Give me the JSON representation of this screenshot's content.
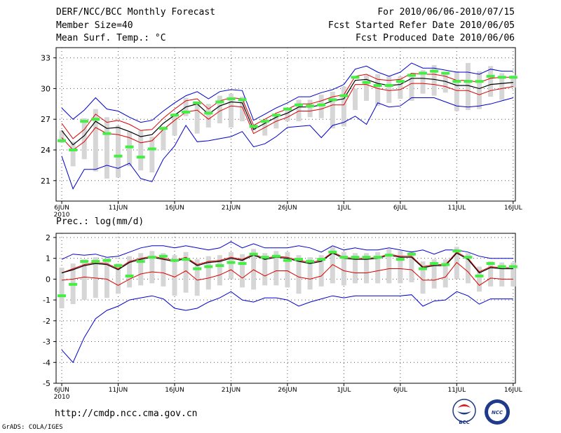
{
  "header": {
    "title": "DERF/NCC/BCC Monthly Forecast",
    "member_size": "Member Size=40",
    "variable": "Mean Surf. Temp.: °C",
    "forecast_period": "For 2010/06/06-2010/07/15",
    "start_refer": "Fcst Started Refer Date 2010/06/05",
    "produced": "Fcst Produced Date 2010/06/06"
  },
  "footer": {
    "url": "http://cmdp.ncc.cma.gov.cn",
    "grads": "GrADS: COLA/IGES",
    "logo_bcc": "BCC",
    "logo_ncc": "NCC"
  },
  "colors": {
    "envelope": "#0000cc",
    "spread": "#dd0000",
    "mean": "#000000",
    "median": "#44ee44",
    "box": "#d6d6d6",
    "grid": "#555555"
  },
  "chart_data": [
    {
      "type": "line",
      "title": "Mean Surf. Temp.: °C",
      "xlabel": "",
      "ylabel": "°C",
      "ylim": [
        19,
        34
      ],
      "yticks": [
        21,
        24,
        27,
        30,
        33
      ],
      "xticks": [
        {
          "day": 0,
          "label": "6JUN",
          "year": "2010"
        },
        {
          "day": 5,
          "label": "11JUN"
        },
        {
          "day": 10,
          "label": "16JUN"
        },
        {
          "day": 15,
          "label": "21JUN"
        },
        {
          "day": 20,
          "label": "26JUN"
        },
        {
          "day": 25,
          "label": "1JUL"
        },
        {
          "day": 30,
          "label": "6JUL"
        },
        {
          "day": 35,
          "label": "11JUL"
        },
        {
          "day": 40,
          "label": "16JUL"
        }
      ],
      "xlim": [
        -0.5,
        40.2
      ],
      "series": [
        {
          "name": "ensemble max",
          "values": [
            28.1,
            27.0,
            27.9,
            29.1,
            28.0,
            27.8,
            27.2,
            26.7,
            26.9,
            27.8,
            28.6,
            29.3,
            29.7,
            29.0,
            29.7,
            29.9,
            29.8,
            26.9,
            27.5,
            28.1,
            28.6,
            29.2,
            29.2,
            29.6,
            29.9,
            30.4,
            31.9,
            32.2,
            31.6,
            31.2,
            31.6,
            32.5,
            32.0,
            32.0,
            31.8,
            31.6,
            31.6,
            31.4,
            31.9,
            31.7,
            31.7
          ]
        },
        {
          "name": "spread upper",
          "values": [
            26.6,
            25.1,
            26.0,
            27.5,
            26.7,
            26.9,
            26.5,
            25.9,
            26.0,
            27.1,
            28.0,
            28.8,
            29.0,
            28.0,
            28.8,
            29.1,
            29.0,
            26.4,
            27.0,
            27.6,
            28.0,
            28.5,
            28.5,
            28.8,
            29.2,
            29.4,
            31.2,
            31.4,
            30.9,
            30.8,
            30.9,
            31.5,
            31.4,
            31.4,
            31.2,
            30.8,
            30.8,
            30.6,
            31.0,
            31.1,
            31.1
          ]
        },
        {
          "name": "ensemble mean",
          "values": [
            25.9,
            24.5,
            25.4,
            26.8,
            26.1,
            26.2,
            25.8,
            25.3,
            25.5,
            26.6,
            27.4,
            28.2,
            28.5,
            27.5,
            28.3,
            28.7,
            28.6,
            26.0,
            26.6,
            27.2,
            27.6,
            28.2,
            28.2,
            28.4,
            28.8,
            29.0,
            30.8,
            30.9,
            30.5,
            30.3,
            30.4,
            31.0,
            31.0,
            30.9,
            30.7,
            30.3,
            30.3,
            30.0,
            30.4,
            30.5,
            30.6
          ]
        },
        {
          "name": "spread lower",
          "values": [
            25.2,
            24.0,
            24.8,
            26.2,
            25.6,
            25.5,
            25.2,
            24.7,
            24.9,
            26.0,
            26.9,
            27.7,
            27.9,
            27.0,
            27.8,
            28.3,
            28.2,
            25.6,
            26.2,
            26.8,
            27.2,
            27.8,
            27.8,
            28.0,
            28.4,
            28.4,
            30.4,
            30.4,
            30.0,
            29.8,
            29.9,
            30.5,
            30.5,
            30.4,
            30.2,
            29.8,
            29.8,
            29.4,
            29.8,
            30.0,
            30.2
          ]
        },
        {
          "name": "ensemble min",
          "values": [
            23.4,
            20.2,
            22.1,
            22.1,
            22.5,
            22.2,
            22.7,
            21.2,
            20.9,
            23.1,
            24.4,
            26.4,
            24.8,
            24.9,
            25.1,
            25.3,
            25.8,
            24.3,
            24.6,
            25.3,
            26.2,
            26.3,
            26.4,
            25.2,
            26.4,
            26.7,
            27.3,
            26.5,
            28.6,
            28.2,
            28.3,
            29.1,
            29.1,
            29.1,
            28.7,
            28.3,
            28.2,
            28.3,
            28.5,
            28.8,
            29.1
          ]
        }
      ],
      "median": [
        24.9,
        24.0,
        26.8,
        27.0,
        25.6,
        23.4,
        24.3,
        23.3,
        24.1,
        26.1,
        27.4,
        27.7,
        28.6,
        27.6,
        28.7,
        29.0,
        28.9,
        26.3,
        26.8,
        27.4,
        28.0,
        28.4,
        28.3,
        28.4,
        28.9,
        29.3,
        31.1,
        30.6,
        30.3,
        30.3,
        30.7,
        31.3,
        31.5,
        31.7,
        31.5,
        30.7,
        30.7,
        30.7,
        31.2,
        31.1,
        31.1
      ],
      "box": [
        [
          24.7,
          25.9
        ],
        [
          22.4,
          24.8
        ],
        [
          23.1,
          27.1
        ],
        [
          21.9,
          28.0
        ],
        [
          21.2,
          27.2
        ],
        [
          21.3,
          26.4
        ],
        [
          22.4,
          25.8
        ],
        [
          22.0,
          25.9
        ],
        [
          21.8,
          25.3
        ],
        [
          24.0,
          26.3
        ],
        [
          25.4,
          27.6
        ],
        [
          27.3,
          29.1
        ],
        [
          25.6,
          28.6
        ],
        [
          26.2,
          28.5
        ],
        [
          26.6,
          29.3
        ],
        [
          26.2,
          29.5
        ],
        [
          26.8,
          29.2
        ],
        [
          25.9,
          26.4
        ],
        [
          25.4,
          26.8
        ],
        [
          26.1,
          27.3
        ],
        [
          26.8,
          28.1
        ],
        [
          26.8,
          28.9
        ],
        [
          27.2,
          28.9
        ],
        [
          27.1,
          29.4
        ],
        [
          26.1,
          29.7
        ],
        [
          26.3,
          30.2
        ],
        [
          27.9,
          30.0
        ],
        [
          28.8,
          31.3
        ],
        [
          28.3,
          31.4
        ],
        [
          28.6,
          31.2
        ],
        [
          29.0,
          31.2
        ],
        [
          28.8,
          31.3
        ],
        [
          29.5,
          31.8
        ],
        [
          29.3,
          32.3
        ],
        [
          29.6,
          31.6
        ],
        [
          27.8,
          31.7
        ],
        [
          27.9,
          32.5
        ],
        [
          28.0,
          31.7
        ],
        [
          29.2,
          32.2
        ],
        [
          28.9,
          31.5
        ],
        [
          30.1,
          31.3
        ]
      ]
    },
    {
      "type": "line",
      "title": "Prec.: log(mm/d)",
      "xlabel": "",
      "ylabel": "log(mm/d)",
      "ylim": [
        -5,
        2.2
      ],
      "yticks": [
        -5,
        -4,
        -3,
        -2,
        -1,
        0,
        1,
        2
      ],
      "xticks": [
        {
          "day": 0,
          "label": "6JUN",
          "year": "2010"
        },
        {
          "day": 5,
          "label": "11JUN"
        },
        {
          "day": 10,
          "label": "16JUN"
        },
        {
          "day": 15,
          "label": "21JUN"
        },
        {
          "day": 20,
          "label": "26JUN"
        },
        {
          "day": 25,
          "label": "1JUL"
        },
        {
          "day": 30,
          "label": "6JUL"
        },
        {
          "day": 35,
          "label": "11JUL"
        },
        {
          "day": 40,
          "label": "16JUL"
        }
      ],
      "xlim": [
        -0.5,
        40.2
      ],
      "series": [
        {
          "name": "ensemble max",
          "values": [
            0.95,
            1.2,
            1.15,
            1.2,
            1.05,
            1.1,
            1.3,
            1.5,
            1.6,
            1.6,
            1.5,
            1.6,
            1.5,
            1.4,
            1.5,
            1.8,
            1.5,
            1.7,
            1.5,
            1.5,
            1.5,
            1.6,
            1.5,
            1.3,
            1.6,
            1.4,
            1.5,
            1.4,
            1.4,
            1.5,
            1.4,
            1.3,
            1.4,
            1.2,
            1.4,
            1.4,
            1.3,
            1.1,
            1.0,
            1.0,
            1.0
          ]
        },
        {
          "name": "spread upper",
          "values": [
            0.3,
            0.5,
            0.7,
            0.8,
            0.75,
            0.5,
            0.85,
            1.0,
            1.1,
            1.0,
            0.9,
            1.05,
            0.7,
            0.85,
            0.9,
            1.05,
            0.95,
            1.2,
            1.0,
            1.1,
            1.05,
            0.9,
            0.8,
            0.9,
            1.3,
            1.05,
            1.0,
            1.0,
            1.05,
            1.2,
            1.1,
            1.1,
            0.6,
            0.7,
            0.7,
            1.3,
            1.0,
            0.35,
            0.6,
            0.55,
            0.55
          ]
        },
        {
          "name": "ensemble mean",
          "values": [
            0.3,
            0.45,
            0.65,
            0.75,
            0.7,
            0.45,
            0.8,
            0.95,
            1.05,
            0.95,
            0.85,
            1.0,
            0.65,
            0.8,
            0.85,
            1.0,
            0.9,
            1.15,
            0.95,
            1.05,
            1.0,
            0.85,
            0.75,
            0.85,
            1.25,
            1.0,
            0.95,
            0.95,
            1.0,
            1.15,
            1.05,
            1.05,
            0.55,
            0.65,
            0.65,
            1.25,
            0.95,
            0.3,
            0.55,
            0.5,
            0.5
          ]
        },
        {
          "name": "spread lower",
          "values": [
            -0.05,
            0.0,
            0.1,
            0.05,
            0.0,
            -0.3,
            0.0,
            0.25,
            0.35,
            0.3,
            0.1,
            0.4,
            -0.05,
            0.05,
            0.2,
            0.45,
            0.05,
            0.45,
            0.15,
            0.4,
            0.4,
            0.1,
            0.0,
            0.15,
            0.7,
            0.4,
            0.3,
            0.3,
            0.4,
            0.5,
            0.5,
            0.45,
            -0.05,
            -0.05,
            0.1,
            0.8,
            0.35,
            -0.3,
            0.05,
            0.0,
            0.0
          ]
        },
        {
          "name": "ensemble min",
          "values": [
            -3.4,
            -4.0,
            -2.8,
            -1.9,
            -1.5,
            -1.3,
            -1.0,
            -0.9,
            -0.8,
            -0.95,
            -1.4,
            -1.5,
            -1.4,
            -1.1,
            -0.9,
            -0.6,
            -1.0,
            -1.1,
            -0.9,
            -0.9,
            -1.0,
            -1.3,
            -1.1,
            -0.95,
            -0.8,
            -0.9,
            -0.8,
            -0.8,
            -0.8,
            -0.8,
            -0.8,
            -0.75,
            -1.3,
            -1.05,
            -1.0,
            -0.6,
            -0.8,
            -1.2,
            -0.95,
            -0.95,
            -0.95
          ]
        }
      ],
      "median": [
        -0.8,
        -0.25,
        0.85,
        0.85,
        0.9,
        0.65,
        0.15,
        0.85,
        1.05,
        1.1,
        0.9,
        0.95,
        0.5,
        0.6,
        0.65,
        0.8,
        0.75,
        1.2,
        1.05,
        1.1,
        0.9,
        0.95,
        0.85,
        0.95,
        1.3,
        1.05,
        1.05,
        1.05,
        1.05,
        1.15,
        0.95,
        1.2,
        0.5,
        0.75,
        0.7,
        1.35,
        1.05,
        0.15,
        0.75,
        0.6,
        0.6
      ]
    }
  ]
}
